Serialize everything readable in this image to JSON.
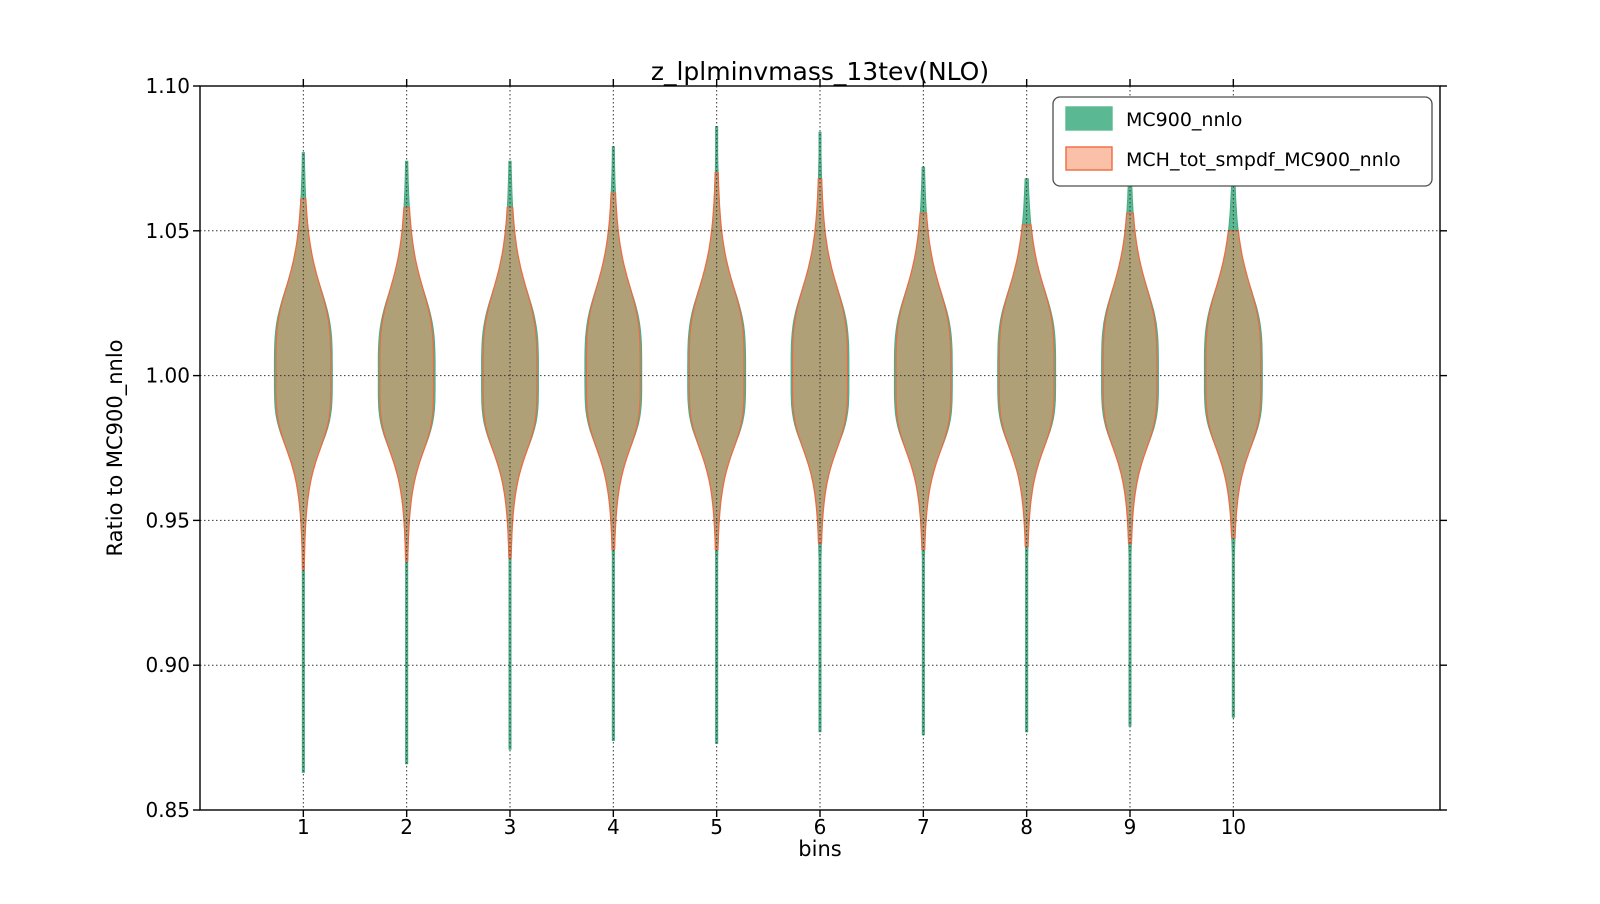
{
  "figure": {
    "title": "z_lplminvmass_13tev(NLO)",
    "xlabel": "bins",
    "ylabel": "Ratio to MC900_nnlo"
  },
  "legend": {
    "entries": [
      {
        "label": "MC900_nnlo",
        "fill": "#5ab892",
        "edge": "#5ab892"
      },
      {
        "label": "MCH_tot_smpdf_MC900_nnlo",
        "fill": "#fbc0a8",
        "edge": "#ee6a42"
      }
    ]
  },
  "chart_data": {
    "type": "violin",
    "title": "z_lplminvmass_13tev(NLO)",
    "xlabel": "bins",
    "ylabel": "Ratio to MC900_nnlo",
    "xlim": [
      0,
      12
    ],
    "ylim": [
      0.85,
      1.1
    ],
    "xticks": [
      1,
      2,
      3,
      4,
      5,
      6,
      7,
      8,
      9,
      10
    ],
    "yticks": [
      0.85,
      0.9,
      0.95,
      1.0,
      1.05,
      1.1
    ],
    "ytick_labels": [
      "0.85",
      "0.90",
      "0.95",
      "1.00",
      "1.05",
      "1.10"
    ],
    "grid": "dotted",
    "grid_color": "#333333",
    "legend_position": "upper right",
    "series": [
      {
        "name": "MC900_nnlo",
        "role": "outer",
        "fill": "#5ab892",
        "edge": "#4aab84"
      },
      {
        "name": "MCH_tot_smpdf_MC900_nnlo",
        "role": "inner",
        "fill": "rgba(248,141,97,0.55)",
        "edge": "#ee6a42"
      }
    ],
    "violins": [
      {
        "bin": 1,
        "center": 1.0,
        "mc900_range": [
          0.863,
          1.077
        ],
        "mch_range": [
          0.933,
          1.061
        ],
        "max_width": 0.56
      },
      {
        "bin": 2,
        "center": 0.999,
        "mc900_range": [
          0.866,
          1.074
        ],
        "mch_range": [
          0.936,
          1.058
        ],
        "max_width": 0.55
      },
      {
        "bin": 3,
        "center": 0.999,
        "mc900_range": [
          0.871,
          1.074
        ],
        "mch_range": [
          0.937,
          1.058
        ],
        "max_width": 0.55
      },
      {
        "bin": 4,
        "center": 1.0,
        "mc900_range": [
          0.874,
          1.079
        ],
        "mch_range": [
          0.94,
          1.063
        ],
        "max_width": 0.55
      },
      {
        "bin": 5,
        "center": 1.0,
        "mc900_range": [
          0.873,
          1.086
        ],
        "mch_range": [
          0.94,
          1.07
        ],
        "max_width": 0.56
      },
      {
        "bin": 6,
        "center": 1.0,
        "mc900_range": [
          0.877,
          1.084
        ],
        "mch_range": [
          0.942,
          1.068
        ],
        "max_width": 0.56
      },
      {
        "bin": 7,
        "center": 0.999,
        "mc900_range": [
          0.876,
          1.072
        ],
        "mch_range": [
          0.94,
          1.056
        ],
        "max_width": 0.56
      },
      {
        "bin": 8,
        "center": 1.0,
        "mc900_range": [
          0.877,
          1.068
        ],
        "mch_range": [
          0.941,
          1.052
        ],
        "max_width": 0.56
      },
      {
        "bin": 9,
        "center": 1.0,
        "mc900_range": [
          0.879,
          1.072
        ],
        "mch_range": [
          0.942,
          1.056
        ],
        "max_width": 0.55
      },
      {
        "bin": 10,
        "center": 1.0,
        "mc900_range": [
          0.882,
          1.066
        ],
        "mch_range": [
          0.944,
          1.05
        ],
        "max_width": 0.56
      }
    ],
    "profile": {
      "sigma_up": 0.0335,
      "sigma_dn": 0.0275,
      "exponent": 4,
      "min_halfwidth": 0.01,
      "inner_width_delta": 0.015,
      "inner_min_halfwidth": 0.006
    }
  }
}
